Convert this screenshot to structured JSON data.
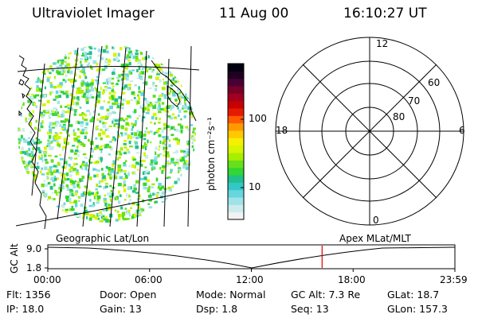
{
  "header": {
    "instrument": "Ultraviolet Imager",
    "date": "11 Aug 00",
    "time": "16:10:27 UT"
  },
  "colorbar": {
    "unit_label": "photon cm⁻²s⁻¹",
    "tick_labels": [
      "100",
      "10"
    ],
    "colors": [
      "#f2f2f2",
      "#ccecec",
      "#9fe3e8",
      "#66d6dc",
      "#33c8c8",
      "#22c08a",
      "#33d633",
      "#66e01a",
      "#a8ee00",
      "#d7f500",
      "#f5f000",
      "#ffc800",
      "#ff9900",
      "#ff5a00",
      "#e61a00",
      "#c80000",
      "#a0001e",
      "#780028",
      "#4a0032",
      "#1e0022",
      "#000010"
    ]
  },
  "polar_plot": {
    "mlt_labels": {
      "top": "12",
      "bottom": "0",
      "left": "18",
      "right": "6"
    },
    "lat_labels": [
      "60",
      "70",
      "80"
    ]
  },
  "timeline": {
    "ylabel": "GC Alt",
    "y_ticks": [
      "9.0",
      "1.8"
    ],
    "left_caption": "Geographic Lat/Lon",
    "right_caption": "Apex  MLat/MLT",
    "x_ticks": [
      "00:00",
      "06:00",
      "12:00",
      "18:00",
      "23:59"
    ],
    "current_hour": 16.17
  },
  "info": {
    "flt": "Flt: 1356",
    "ip": "IP: 18.0",
    "door": "Door: Open",
    "gain": "Gain: 13",
    "mode": "Mode: Normal",
    "dsp": "Dsp:     1.8",
    "gcalt": "GC Alt: 7.3 Re",
    "seq": "Seq: 13",
    "glat": "GLat: 18.7",
    "glon": "GLon: 157.3"
  }
}
